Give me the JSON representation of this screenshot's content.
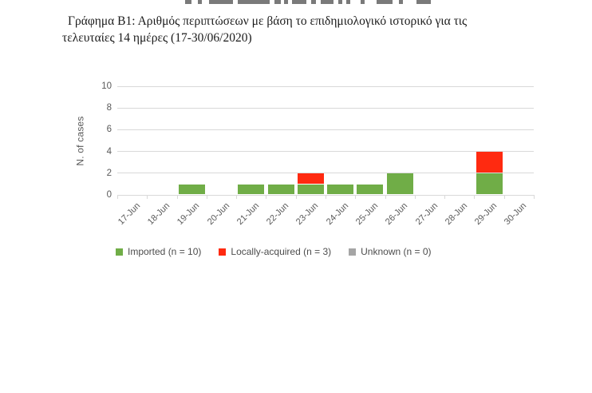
{
  "title": {
    "line1": "Γράφημα Β1: Αριθμός περιπτώσεων με βάση το επιδημιολογικό ιστορικό για τις",
    "line2": "τελευταίες 14 ημέρες (17-30/06/2020)"
  },
  "chart_data": {
    "type": "bar",
    "stacked": true,
    "title": "",
    "xlabel": "",
    "ylabel": "N. of cases",
    "ylim": [
      0,
      10
    ],
    "yticks": [
      0,
      2,
      4,
      6,
      8,
      10
    ],
    "grid": true,
    "legend_position": "bottom",
    "categories": [
      "17-Jun",
      "18-Jun",
      "19-Jun",
      "20-Jun",
      "21-Jun",
      "22-Jun",
      "23-Jun",
      "24-Jun",
      "25-Jun",
      "26-Jun",
      "27-Jun",
      "28-Jun",
      "29-Jun",
      "30-Jun"
    ],
    "series": [
      {
        "name": "Imported (n = 10)",
        "color": "#70AD47",
        "values": [
          0,
          0,
          1,
          0,
          1,
          1,
          1,
          1,
          1,
          2,
          0,
          0,
          2,
          0
        ]
      },
      {
        "name": "Locally-acquired (n = 3)",
        "color": "#FF2A10",
        "values": [
          0,
          0,
          0,
          0,
          0,
          0,
          1,
          0,
          0,
          0,
          0,
          0,
          2,
          0
        ]
      },
      {
        "name": "Unknown (n = 0)",
        "color": "#A5A5A5",
        "values": [
          0,
          0,
          0,
          0,
          0,
          0,
          0,
          0,
          0,
          0,
          0,
          0,
          0,
          0
        ]
      }
    ]
  },
  "colors": {
    "imported": "#70AD47",
    "locally_acquired": "#FF2A10",
    "unknown": "#A5A5A5",
    "gridline": "#D9D9D9",
    "axis_text": "#595959",
    "legend_text": "#4D4D4D"
  }
}
